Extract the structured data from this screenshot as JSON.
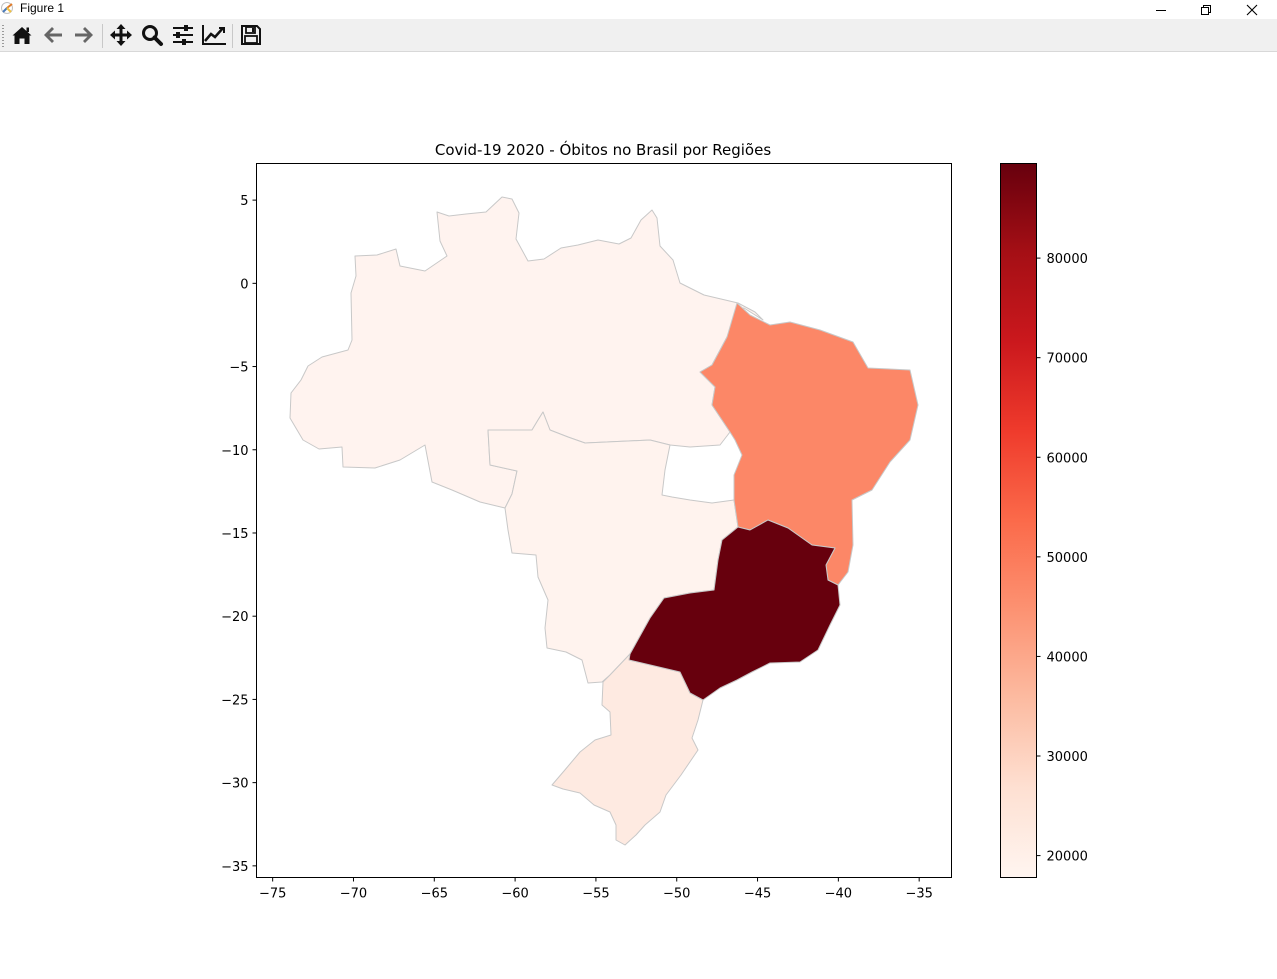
{
  "window": {
    "title": "Figure 1"
  },
  "toolbar": {
    "buttons": [
      {
        "name": "home-button",
        "icon": "home-icon"
      },
      {
        "name": "back-button",
        "icon": "arrow-left-icon"
      },
      {
        "name": "forward-button",
        "icon": "arrow-right-icon"
      },
      {
        "name": "pan-button",
        "icon": "move-icon"
      },
      {
        "name": "zoom-button",
        "icon": "magnifier-icon"
      },
      {
        "name": "configure-subplots-button",
        "icon": "sliders-icon"
      },
      {
        "name": "edit-axis-button",
        "icon": "line-chart-icon"
      },
      {
        "name": "save-button",
        "icon": "floppy-disk-icon"
      }
    ]
  },
  "chart_data": {
    "type": "choropleth",
    "title": "Covid-19 2020 - Óbitos no Brasil por Regiões",
    "xlabel": "",
    "ylabel": "",
    "xlim": [
      -76,
      -33
    ],
    "ylim": [
      -35.7,
      7.2
    ],
    "x_ticks": [
      -75,
      -70,
      -65,
      -60,
      -55,
      -50,
      -45,
      -40,
      -35
    ],
    "y_ticks": [
      5,
      0,
      -5,
      -10,
      -15,
      -20,
      -25,
      -30,
      -35
    ],
    "grid": false,
    "colormap": "Reds",
    "colorbar": {
      "min": 17800,
      "max": 89500,
      "ticks": [
        20000,
        30000,
        40000,
        50000,
        60000,
        70000,
        80000
      ]
    },
    "edgecolor": "#c8c8c8",
    "regions": [
      {
        "value": 18000,
        "fill": "#fff3ef"
      },
      {
        "value": 18500,
        "fill": "#fff3ee"
      },
      {
        "value": 22000,
        "fill": "#feeae1"
      },
      {
        "value": 45500,
        "fill": "#fc8767"
      },
      {
        "value": 89000,
        "fill": "#67000d"
      }
    ]
  }
}
